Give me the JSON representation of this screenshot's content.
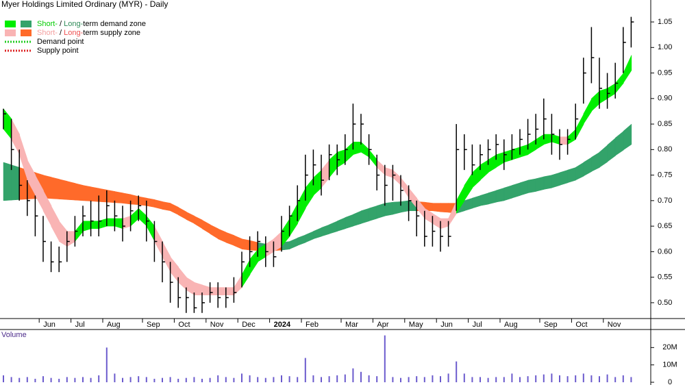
{
  "chart_data": {
    "type": "ohlc",
    "title": "Myer Holdings Limited Ordinary (MYR) - Daily",
    "categories": [
      null,
      null,
      null,
      null,
      null,
      "Jun",
      null,
      null,
      null,
      "Jul",
      null,
      null,
      null,
      "Aug",
      null,
      null,
      null,
      null,
      "Sep",
      null,
      null,
      null,
      "Oct",
      null,
      null,
      null,
      "Nov",
      null,
      null,
      null,
      "Dec",
      null,
      null,
      null,
      "2024",
      null,
      null,
      null,
      "Feb",
      null,
      null,
      null,
      null,
      "Mar",
      null,
      null,
      null,
      "Apr",
      null,
      null,
      null,
      "May",
      null,
      null,
      null,
      "Jun",
      null,
      null,
      null,
      "Jul",
      null,
      null,
      null,
      "Aug",
      null,
      null,
      null,
      null,
      "Sep",
      null,
      null,
      null,
      "Oct",
      null,
      null,
      null,
      "Nov",
      null,
      null,
      null
    ],
    "high": [
      0.88,
      0.86,
      0.8,
      0.74,
      0.71,
      0.67,
      0.62,
      0.61,
      0.64,
      0.67,
      0.69,
      0.7,
      0.71,
      0.72,
      0.7,
      0.69,
      0.7,
      0.71,
      0.7,
      0.66,
      0.62,
      0.58,
      0.55,
      0.53,
      0.52,
      0.52,
      0.54,
      0.54,
      0.53,
      0.55,
      0.6,
      0.63,
      0.64,
      0.63,
      0.62,
      0.67,
      0.69,
      0.73,
      0.79,
      0.8,
      0.79,
      0.81,
      0.81,
      0.83,
      0.89,
      0.87,
      0.83,
      0.79,
      0.77,
      0.77,
      0.75,
      0.73,
      0.7,
      0.68,
      0.67,
      0.66,
      0.66,
      0.85,
      0.83,
      0.81,
      0.81,
      0.82,
      0.83,
      0.82,
      0.83,
      0.84,
      0.86,
      0.87,
      0.9,
      0.87,
      0.84,
      0.84,
      0.89,
      0.98,
      1.04,
      0.98,
      0.95,
      0.97,
      1.04,
      1.06
    ],
    "low": [
      0.84,
      0.76,
      0.7,
      0.67,
      0.63,
      0.58,
      0.56,
      0.56,
      0.58,
      0.61,
      0.63,
      0.63,
      0.63,
      0.65,
      0.64,
      0.62,
      0.64,
      0.66,
      0.62,
      0.58,
      0.54,
      0.5,
      0.49,
      0.48,
      0.48,
      0.48,
      0.5,
      0.49,
      0.49,
      0.5,
      0.53,
      0.57,
      0.59,
      0.57,
      0.57,
      0.6,
      0.63,
      0.66,
      0.7,
      0.73,
      0.71,
      0.74,
      0.75,
      0.77,
      0.8,
      0.81,
      0.77,
      0.72,
      0.69,
      0.7,
      0.69,
      0.66,
      0.63,
      0.61,
      0.61,
      0.6,
      0.61,
      0.68,
      0.76,
      0.75,
      0.76,
      0.77,
      0.78,
      0.76,
      0.78,
      0.79,
      0.8,
      0.81,
      0.82,
      0.79,
      0.78,
      0.79,
      0.82,
      0.89,
      0.93,
      0.88,
      0.88,
      0.9,
      0.95,
      1.0
    ],
    "close": [
      0.87,
      0.8,
      0.73,
      0.7,
      0.67,
      0.62,
      0.58,
      0.58,
      0.62,
      0.64,
      0.67,
      0.66,
      0.66,
      0.69,
      0.67,
      0.65,
      0.68,
      0.69,
      0.66,
      0.62,
      0.58,
      0.54,
      0.51,
      0.51,
      0.49,
      0.5,
      0.52,
      0.51,
      0.51,
      0.52,
      0.58,
      0.6,
      0.62,
      0.6,
      0.59,
      0.64,
      0.67,
      0.7,
      0.75,
      0.77,
      0.74,
      0.79,
      0.78,
      0.8,
      0.85,
      0.85,
      0.8,
      0.75,
      0.73,
      0.75,
      0.72,
      0.7,
      0.67,
      0.63,
      0.64,
      0.63,
      0.63,
      0.8,
      0.8,
      0.77,
      0.79,
      0.8,
      0.81,
      0.79,
      0.8,
      0.82,
      0.83,
      0.84,
      0.86,
      0.83,
      0.81,
      0.82,
      0.86,
      0.95,
      0.98,
      0.92,
      0.91,
      0.93,
      1.01,
      1.05
    ],
    "short_term_zone": {
      "upper": [
        0.88,
        0.86,
        0.83,
        0.78,
        0.75,
        0.72,
        0.69,
        0.66,
        0.64,
        0.64,
        0.66,
        0.66,
        0.66,
        0.665,
        0.665,
        0.665,
        0.67,
        0.685,
        0.67,
        0.65,
        0.62,
        0.59,
        0.57,
        0.55,
        0.54,
        0.535,
        0.53,
        0.53,
        0.53,
        0.53,
        0.555,
        0.585,
        0.605,
        0.615,
        0.625,
        0.64,
        0.665,
        0.695,
        0.725,
        0.745,
        0.76,
        0.78,
        0.795,
        0.8,
        0.815,
        0.815,
        0.8,
        0.78,
        0.765,
        0.76,
        0.745,
        0.725,
        0.705,
        0.685,
        0.675,
        0.665,
        0.665,
        0.7,
        0.73,
        0.755,
        0.77,
        0.78,
        0.79,
        0.795,
        0.8,
        0.805,
        0.81,
        0.82,
        0.83,
        0.83,
        0.825,
        0.825,
        0.84,
        0.87,
        0.9,
        0.915,
        0.92,
        0.93,
        0.95,
        0.985
      ],
      "lower": [
        0.84,
        0.82,
        0.79,
        0.74,
        0.71,
        0.68,
        0.65,
        0.62,
        0.61,
        0.62,
        0.64,
        0.645,
        0.645,
        0.65,
        0.65,
        0.645,
        0.65,
        0.665,
        0.65,
        0.62,
        0.59,
        0.56,
        0.54,
        0.525,
        0.515,
        0.515,
        0.515,
        0.515,
        0.515,
        0.515,
        0.53,
        0.555,
        0.58,
        0.59,
        0.6,
        0.61,
        0.63,
        0.655,
        0.685,
        0.71,
        0.725,
        0.745,
        0.765,
        0.775,
        0.79,
        0.795,
        0.785,
        0.765,
        0.75,
        0.745,
        0.73,
        0.705,
        0.685,
        0.665,
        0.655,
        0.645,
        0.65,
        0.675,
        0.7,
        0.725,
        0.74,
        0.755,
        0.765,
        0.775,
        0.78,
        0.785,
        0.79,
        0.8,
        0.81,
        0.815,
        0.81,
        0.81,
        0.82,
        0.85,
        0.875,
        0.89,
        0.9,
        0.91,
        0.93,
        0.955
      ]
    },
    "long_term_zone": {
      "upper": [
        0.775,
        0.77,
        0.765,
        0.76,
        0.755,
        0.75,
        0.746,
        0.742,
        0.738,
        0.734,
        0.73,
        0.727,
        0.724,
        0.721,
        0.718,
        0.715,
        0.712,
        0.708,
        0.705,
        0.702,
        0.698,
        0.695,
        0.687,
        0.678,
        0.67,
        0.662,
        0.653,
        0.645,
        0.638,
        0.632,
        0.625,
        0.622,
        0.618,
        0.615,
        0.617,
        0.618,
        0.62,
        0.627,
        0.633,
        0.64,
        0.647,
        0.653,
        0.66,
        0.667,
        0.673,
        0.68,
        0.685,
        0.69,
        0.695,
        0.697,
        0.698,
        0.7,
        0.698,
        0.697,
        0.695,
        0.695,
        0.695,
        0.695,
        0.7,
        0.705,
        0.71,
        0.715,
        0.72,
        0.725,
        0.73,
        0.735,
        0.74,
        0.743,
        0.747,
        0.75,
        0.755,
        0.76,
        0.765,
        0.775,
        0.785,
        0.795,
        0.809,
        0.823,
        0.836,
        0.85
      ],
      "lower": [
        0.7,
        0.701,
        0.702,
        0.703,
        0.704,
        0.705,
        0.704,
        0.703,
        0.702,
        0.701,
        0.7,
        0.699,
        0.698,
        0.697,
        0.696,
        0.695,
        0.693,
        0.692,
        0.69,
        0.687,
        0.683,
        0.68,
        0.672,
        0.663,
        0.655,
        0.645,
        0.635,
        0.625,
        0.618,
        0.612,
        0.605,
        0.603,
        0.602,
        0.6,
        0.602,
        0.603,
        0.605,
        0.612,
        0.618,
        0.625,
        0.63,
        0.635,
        0.64,
        0.645,
        0.65,
        0.655,
        0.66,
        0.665,
        0.67,
        0.673,
        0.677,
        0.68,
        0.68,
        0.68,
        0.68,
        0.678,
        0.677,
        0.675,
        0.68,
        0.685,
        0.69,
        0.693,
        0.697,
        0.7,
        0.705,
        0.71,
        0.715,
        0.718,
        0.722,
        0.725,
        0.73,
        0.735,
        0.74,
        0.748,
        0.757,
        0.765,
        0.776,
        0.788,
        0.799,
        0.81
      ]
    },
    "zone_colors": {
      "short_demand": "#00ee00",
      "long_demand": "#33a36a",
      "short_supply": "#f9b4b4",
      "long_supply": "#ff6a2a"
    },
    "legend_text_colors": {
      "short_demand": "#00cc00",
      "long_demand": "#2e8b57",
      "short_supply": "#f4a0a0",
      "long_supply": "#ee5050"
    },
    "point_colors": {
      "demand": "#22cc22",
      "supply": "#dd2222"
    },
    "bar_color": "#000000",
    "legend": [
      {
        "short": "Short-",
        "sep": " / ",
        "long": "Long-",
        "rest": "term demand zone"
      },
      {
        "short": "Short-",
        "sep": " / ",
        "long": "Long-",
        "rest": "term supply zone"
      },
      {
        "label": "Demand point"
      },
      {
        "label": "Supply point"
      }
    ],
    "ylim": [
      0.469,
      1.093
    ],
    "yticks": [
      {
        "value": 0.5,
        "label": "0.50"
      },
      0.55,
      {
        "value": 0.6,
        "label": "0.60"
      },
      0.65,
      {
        "value": 0.7,
        "label": "0.70"
      },
      0.75,
      {
        "value": 0.8,
        "label": "0.80"
      },
      0.85,
      {
        "value": 0.9,
        "label": "0.90"
      },
      0.95,
      {
        "value": 1.0,
        "label": "1.00"
      },
      1.05
    ],
    "volume": {
      "title": "Volume",
      "color": "#6a5acd",
      "values": [
        4000000,
        3000000,
        2500000,
        3000000,
        2000000,
        3500000,
        2500000,
        2000000,
        3000000,
        2500000,
        3000000,
        2500000,
        4000000,
        20000000,
        5000000,
        2500000,
        3000000,
        3500000,
        3000000,
        2000000,
        2500000,
        3000000,
        2000000,
        2500000,
        3000000,
        2000000,
        2500000,
        4000000,
        3000000,
        2500000,
        5000000,
        4000000,
        3000000,
        2500000,
        3000000,
        4000000,
        3500000,
        3000000,
        14000000,
        4000000,
        3000000,
        3500000,
        4000000,
        4500000,
        8000000,
        6000000,
        4000000,
        3500000,
        27000000,
        3000000,
        2500000,
        3000000,
        3500000,
        3000000,
        4000000,
        3500000,
        5000000,
        12000000,
        5000000,
        3000000,
        3000000,
        2500000,
        3000000,
        3000000,
        5000000,
        3000000,
        3500000,
        4000000,
        4500000,
        5000000,
        4000000,
        3500000,
        4000000,
        5000000,
        4000000,
        3500000,
        4500000,
        3000000,
        4000000,
        3000000
      ],
      "ylim": [
        0,
        30000000
      ],
      "yticks": [
        0,
        {
          "value": 10000000,
          "label": "10M"
        },
        {
          "value": 20000000,
          "label": "20M"
        }
      ]
    }
  }
}
